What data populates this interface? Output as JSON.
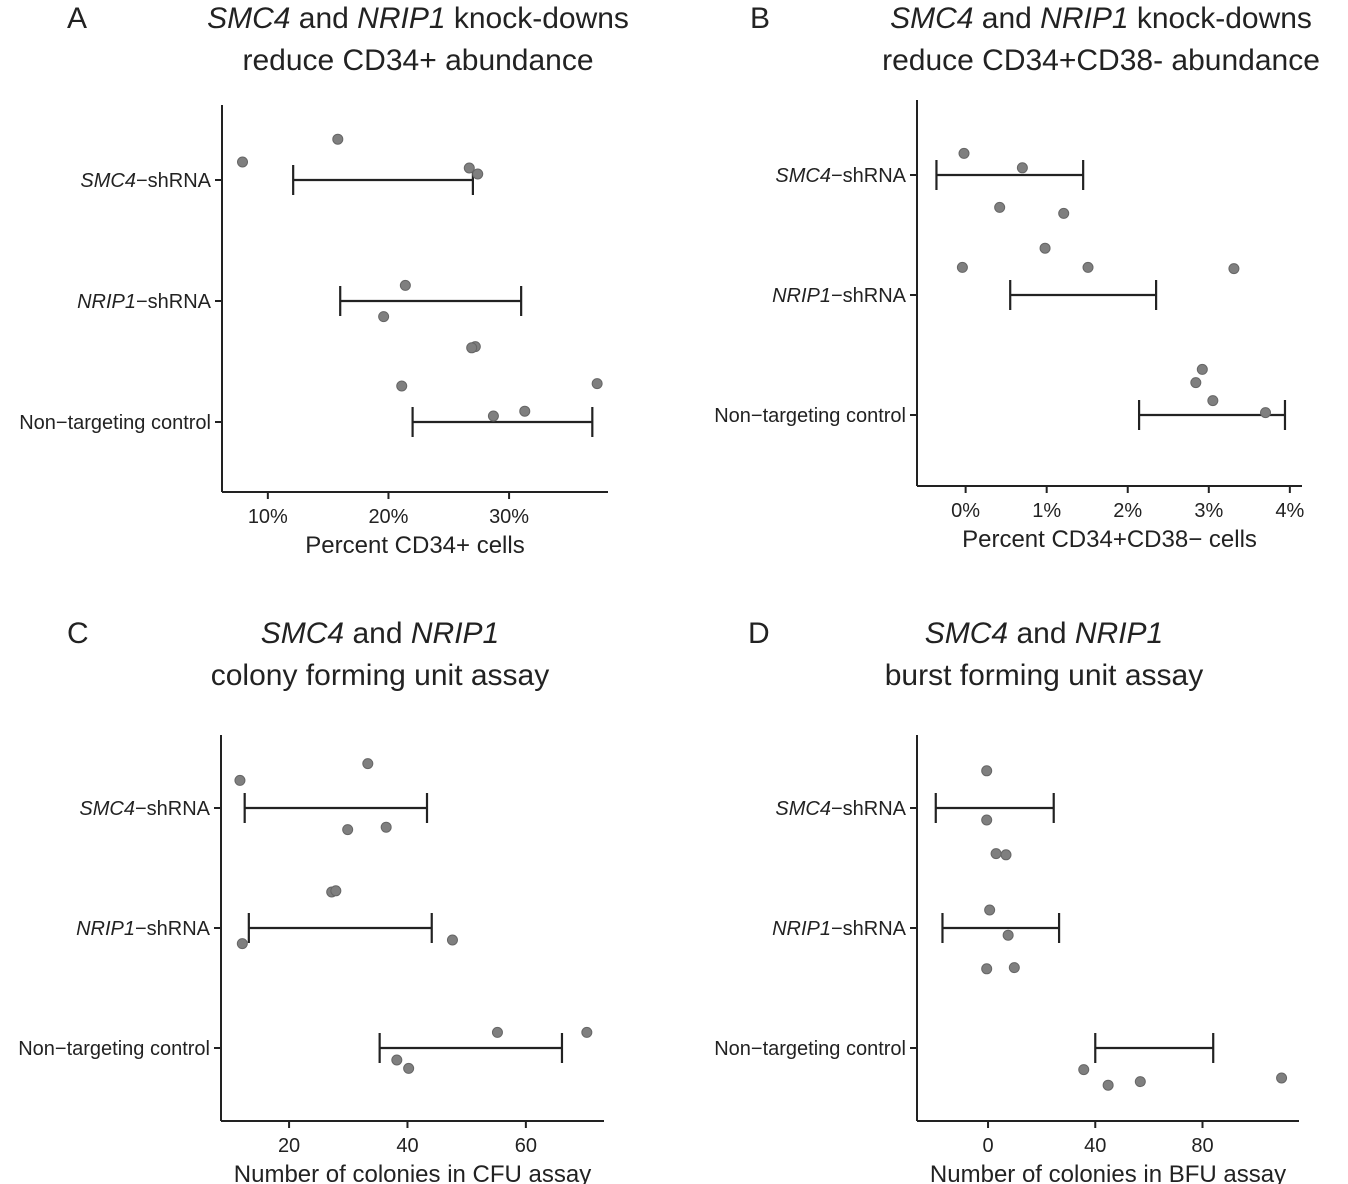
{
  "colors": {
    "point": "#7f7f7f",
    "axis": "#222222",
    "errorbar": "#222222"
  },
  "chart_data": [
    {
      "id": "A",
      "type": "scatter",
      "panel_label": "A",
      "title": [
        [
          {
            "text": "SMC4",
            "italic": true
          },
          {
            "text": " and ",
            "italic": false
          },
          {
            "text": "NRIP1",
            "italic": true
          },
          {
            "text": " knock-downs",
            "italic": false
          }
        ],
        [
          {
            "text": "reduce CD34+ abundance",
            "italic": false
          }
        ]
      ],
      "xlabel": "Percent CD34+ cells",
      "xlim": [
        6.2,
        38.2
      ],
      "xticks": [
        10,
        20,
        30
      ],
      "xticklabels": [
        "10%",
        "20%",
        "30%"
      ],
      "categories": [
        {
          "gene": "SMC4",
          "suffix": "−shRNA"
        },
        {
          "gene": "NRIP1",
          "suffix": "−shRNA"
        },
        {
          "gene": "",
          "suffix": "Non−targeting control"
        }
      ],
      "points": [
        {
          "cat": 0,
          "x": 15.8,
          "j": 0.34
        },
        {
          "cat": 0,
          "x": 7.9,
          "j": 0.15
        },
        {
          "cat": 0,
          "x": 26.7,
          "j": 0.1
        },
        {
          "cat": 0,
          "x": 27.4,
          "j": 0.05
        },
        {
          "cat": 1,
          "x": 21.4,
          "j": 0.13
        },
        {
          "cat": 1,
          "x": 19.6,
          "j": -0.13
        },
        {
          "cat": 1,
          "x": 27.2,
          "j": -0.38
        },
        {
          "cat": 1,
          "x": 26.9,
          "j": -0.39
        },
        {
          "cat": 2,
          "x": 21.1,
          "j": 0.3
        },
        {
          "cat": 2,
          "x": 37.3,
          "j": 0.32
        },
        {
          "cat": 2,
          "x": 31.3,
          "j": 0.09
        },
        {
          "cat": 2,
          "x": 28.7,
          "j": 0.05
        }
      ],
      "errorbars": [
        {
          "cat": 0,
          "low": 12.1,
          "high": 27.0
        },
        {
          "cat": 1,
          "low": 16.0,
          "high": 31.0
        },
        {
          "cat": 2,
          "low": 22.0,
          "high": 36.9
        }
      ]
    },
    {
      "id": "B",
      "type": "scatter",
      "panel_label": "B",
      "title": [
        [
          {
            "text": "SMC4",
            "italic": true
          },
          {
            "text": " and ",
            "italic": false
          },
          {
            "text": "NRIP1",
            "italic": true
          },
          {
            "text": " knock-downs",
            "italic": false
          }
        ],
        [
          {
            "text": "reduce CD34+CD38- abundance",
            "italic": false
          }
        ]
      ],
      "xlabel": "Percent CD34+CD38− cells",
      "xlim": [
        -0.6,
        4.15
      ],
      "xticks": [
        0,
        1,
        2,
        3,
        4
      ],
      "xticklabels": [
        "0%",
        "1%",
        "2%",
        "3%",
        "4%"
      ],
      "categories": [
        {
          "gene": "SMC4",
          "suffix": "−shRNA"
        },
        {
          "gene": "NRIP1",
          "suffix": "−shRNA"
        },
        {
          "gene": "",
          "suffix": "Non−targeting control"
        }
      ],
      "points": [
        {
          "cat": 0,
          "x": -0.02,
          "j": 0.18
        },
        {
          "cat": 0,
          "x": 0.7,
          "j": 0.06
        },
        {
          "cat": 0,
          "x": 0.42,
          "j": -0.27
        },
        {
          "cat": 0,
          "x": 1.21,
          "j": -0.32
        },
        {
          "cat": 1,
          "x": 0.98,
          "j": 0.39
        },
        {
          "cat": 1,
          "x": -0.04,
          "j": 0.23
        },
        {
          "cat": 1,
          "x": 1.51,
          "j": 0.23
        },
        {
          "cat": 1,
          "x": 3.31,
          "j": 0.22
        },
        {
          "cat": 2,
          "x": 2.92,
          "j": 0.38
        },
        {
          "cat": 2,
          "x": 2.84,
          "j": 0.27
        },
        {
          "cat": 2,
          "x": 3.05,
          "j": 0.12
        },
        {
          "cat": 2,
          "x": 3.7,
          "j": 0.02
        }
      ],
      "errorbars": [
        {
          "cat": 0,
          "low": -0.36,
          "high": 1.45
        },
        {
          "cat": 1,
          "low": 0.55,
          "high": 2.35
        },
        {
          "cat": 2,
          "low": 2.14,
          "high": 3.94
        }
      ]
    },
    {
      "id": "C",
      "type": "scatter",
      "panel_label": "C",
      "title": [
        [
          {
            "text": "SMC4",
            "italic": true
          },
          {
            "text": " and ",
            "italic": false
          },
          {
            "text": "NRIP1",
            "italic": true
          }
        ],
        [
          {
            "text": "colony forming unit assay",
            "italic": false
          }
        ]
      ],
      "xlabel": "Number of colonies in CFU assay",
      "xlim": [
        8.5,
        73.2
      ],
      "xticks": [
        20,
        40,
        60
      ],
      "xticklabels": [
        "20",
        "40",
        "60"
      ],
      "categories": [
        {
          "gene": "SMC4",
          "suffix": "−shRNA"
        },
        {
          "gene": "NRIP1",
          "suffix": "−shRNA"
        },
        {
          "gene": "",
          "suffix": "Non−targeting control"
        }
      ],
      "points": [
        {
          "cat": 0,
          "x": 33.3,
          "j": 0.37
        },
        {
          "cat": 0,
          "x": 11.7,
          "j": 0.23
        },
        {
          "cat": 0,
          "x": 29.9,
          "j": -0.18
        },
        {
          "cat": 0,
          "x": 36.4,
          "j": -0.16
        },
        {
          "cat": 1,
          "x": 27.2,
          "j": 0.3
        },
        {
          "cat": 1,
          "x": 27.9,
          "j": 0.31
        },
        {
          "cat": 1,
          "x": 47.6,
          "j": -0.1
        },
        {
          "cat": 1,
          "x": 12.1,
          "j": -0.13
        },
        {
          "cat": 2,
          "x": 55.2,
          "j": 0.13
        },
        {
          "cat": 2,
          "x": 70.3,
          "j": 0.13
        },
        {
          "cat": 2,
          "x": 38.2,
          "j": -0.1
        },
        {
          "cat": 2,
          "x": 40.2,
          "j": -0.17
        }
      ],
      "errorbars": [
        {
          "cat": 0,
          "low": 12.5,
          "high": 43.3
        },
        {
          "cat": 1,
          "low": 13.2,
          "high": 44.1
        },
        {
          "cat": 2,
          "low": 35.3,
          "high": 66.1
        }
      ]
    },
    {
      "id": "D",
      "type": "scatter",
      "panel_label": "D",
      "title": [
        [
          {
            "text": "SMC4",
            "italic": true
          },
          {
            "text": " and ",
            "italic": false
          },
          {
            "text": "NRIP1",
            "italic": true
          }
        ],
        [
          {
            "text": "burst forming unit assay",
            "italic": false
          }
        ]
      ],
      "xlabel": "Number of colonies in BFU assay",
      "xlim": [
        -26.5,
        116
      ],
      "xticks": [
        0,
        40,
        80
      ],
      "xticklabels": [
        "0",
        "40",
        "80"
      ],
      "categories": [
        {
          "gene": "SMC4",
          "suffix": "−shRNA"
        },
        {
          "gene": "NRIP1",
          "suffix": "−shRNA"
        },
        {
          "gene": "",
          "suffix": "Non−targeting control"
        }
      ],
      "points": [
        {
          "cat": 0,
          "x": -0.5,
          "j": 0.31
        },
        {
          "cat": 0,
          "x": -0.5,
          "j": -0.1
        },
        {
          "cat": 0,
          "x": 3.0,
          "j": -0.38
        },
        {
          "cat": 0,
          "x": 6.7,
          "j": -0.39
        },
        {
          "cat": 1,
          "x": 0.6,
          "j": 0.15
        },
        {
          "cat": 1,
          "x": 7.5,
          "j": -0.06
        },
        {
          "cat": 1,
          "x": -0.5,
          "j": -0.34
        },
        {
          "cat": 1,
          "x": 9.8,
          "j": -0.33
        },
        {
          "cat": 2,
          "x": 35.7,
          "j": -0.18
        },
        {
          "cat": 2,
          "x": 44.8,
          "j": -0.31
        },
        {
          "cat": 2,
          "x": 56.8,
          "j": -0.28
        },
        {
          "cat": 2,
          "x": 109.5,
          "j": -0.25
        }
      ],
      "errorbars": [
        {
          "cat": 0,
          "low": -19.5,
          "high": 24.5
        },
        {
          "cat": 1,
          "low": -17.0,
          "high": 26.5
        },
        {
          "cat": 2,
          "low": 40.0,
          "high": 84.0
        }
      ]
    }
  ]
}
